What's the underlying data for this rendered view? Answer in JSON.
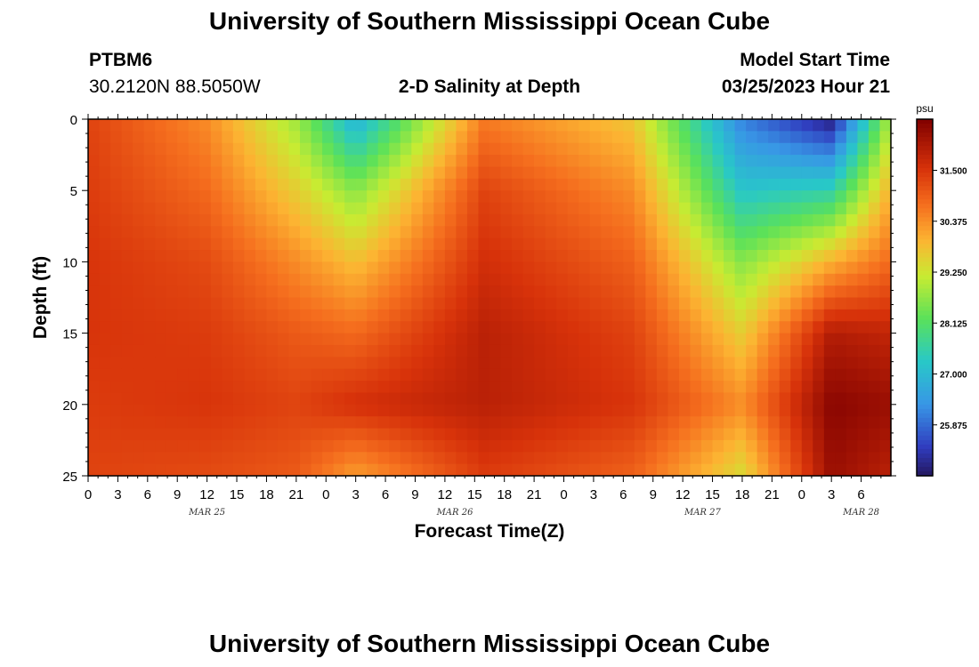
{
  "header": {
    "title": "University of Southern Mississippi Ocean Cube",
    "station": "PTBM6",
    "coords": "30.2120N  88.5050W",
    "subtitle": "2-D Salinity at Depth",
    "model_label": "Model Start Time",
    "model_time": "03/25/2023 Hour 21"
  },
  "footer": {
    "title": "University of Southern Mississippi Ocean Cube"
  },
  "chart_data": {
    "type": "heatmap",
    "title": "2-D Salinity at Depth",
    "xlabel": "Forecast Time(Z)",
    "ylabel": "Depth (ft)",
    "x_range_hours": [
      0,
      81
    ],
    "y_range_ft": [
      0,
      25
    ],
    "x_ticks": [
      "0",
      "3",
      "6",
      "9",
      "12",
      "15",
      "18",
      "21",
      "0",
      "3",
      "6",
      "9",
      "12",
      "15",
      "18",
      "21",
      "0",
      "3",
      "6",
      "9",
      "12",
      "15",
      "18",
      "21",
      "0",
      "3",
      "6"
    ],
    "y_ticks": [
      "0",
      "5",
      "10",
      "15",
      "20",
      "25"
    ],
    "date_labels": [
      {
        "text": "MAR 25",
        "hour": 12
      },
      {
        "text": "MAR 26",
        "hour": 37
      },
      {
        "text": "MAR 27",
        "hour": 62
      },
      {
        "text": "MAR 28",
        "hour": 78
      }
    ],
    "colorbar": {
      "unit": "psu",
      "min": 24.75,
      "max": 32.63,
      "ticks": [
        "31.500",
        "30.375",
        "29.250",
        "28.125",
        "27.000",
        "25.875"
      ]
    },
    "salinity_profiles_psu": {
      "depth_ft": [
        0,
        5,
        10,
        15,
        20,
        25
      ],
      "columns": [
        {
          "hour": 0,
          "values": [
            31.3,
            31.4,
            31.5,
            31.5,
            31.4,
            31.3
          ]
        },
        {
          "hour": 12,
          "values": [
            30.4,
            30.8,
            31.2,
            31.4,
            31.5,
            31.2
          ]
        },
        {
          "hour": 21,
          "values": [
            28.8,
            29.6,
            30.4,
            31.0,
            31.3,
            31.0
          ]
        },
        {
          "hour": 27,
          "values": [
            26.8,
            28.6,
            29.8,
            30.8,
            31.6,
            30.2
          ]
        },
        {
          "hour": 40,
          "values": [
            30.6,
            31.3,
            31.6,
            31.9,
            31.9,
            31.4
          ]
        },
        {
          "hour": 55,
          "values": [
            29.7,
            30.4,
            30.9,
            31.3,
            31.5,
            30.9
          ]
        },
        {
          "hour": 66,
          "values": [
            26.1,
            27.2,
            28.6,
            29.6,
            30.4,
            29.4
          ]
        },
        {
          "hour": 75,
          "values": [
            24.9,
            27.5,
            30.0,
            32.0,
            32.5,
            32.3
          ]
        },
        {
          "hour": 81,
          "values": [
            29.0,
            30.0,
            30.8,
            31.8,
            32.3,
            31.9
          ]
        }
      ]
    }
  }
}
